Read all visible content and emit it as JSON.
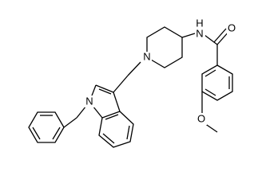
{
  "atoms": [
    {
      "label": "N"
    },
    {
      "label": "N"
    },
    {
      "label": "N"
    },
    {
      "label": "H"
    },
    {
      "label": "O"
    },
    {
      "label": "O"
    }
  ]
}
